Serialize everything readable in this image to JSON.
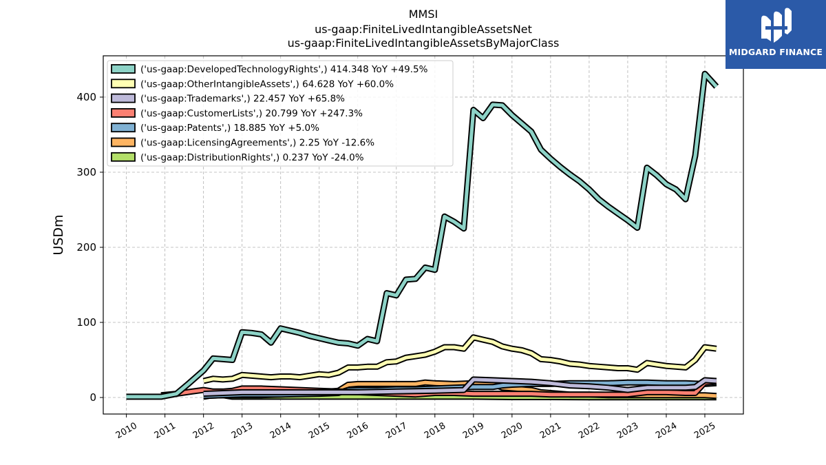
{
  "logo": {
    "text": "MIDGARD FINANCE"
  },
  "chart_data": {
    "type": "line",
    "title": [
      "MMSI",
      "us-gaap:FiniteLivedIntangibleAssetsNet",
      "us-gaap:FiniteLivedIntangibleAssetsByMajorClass"
    ],
    "ylabel": "USDm",
    "xlabel": "",
    "xlim": [
      2009.4,
      2026.0
    ],
    "ylim": [
      -22,
      455
    ],
    "xticks": [
      2010,
      2011,
      2012,
      2013,
      2014,
      2015,
      2016,
      2017,
      2018,
      2019,
      2020,
      2021,
      2022,
      2023,
      2024,
      2025
    ],
    "yticks": [
      0,
      100,
      200,
      300,
      400
    ],
    "grid": true,
    "legend_position": "top-left",
    "series": [
      {
        "name": "('us-gaap:DevelopedTechnologyRights',) 414.348 YoY +49.5%",
        "color": "#8dd3c7",
        "points": [
          [
            2010.0,
            1
          ],
          [
            2010.9,
            1
          ],
          [
            2011.3,
            5
          ],
          [
            2011.6,
            18
          ],
          [
            2012.0,
            36
          ],
          [
            2012.25,
            52
          ],
          [
            2012.5,
            51
          ],
          [
            2012.75,
            50
          ],
          [
            2013.0,
            87
          ],
          [
            2013.25,
            86
          ],
          [
            2013.5,
            84
          ],
          [
            2013.75,
            73
          ],
          [
            2014.0,
            92
          ],
          [
            2014.25,
            89
          ],
          [
            2014.5,
            86
          ],
          [
            2014.75,
            82
          ],
          [
            2015.0,
            79
          ],
          [
            2015.25,
            76
          ],
          [
            2015.5,
            73
          ],
          [
            2015.75,
            72
          ],
          [
            2016.0,
            69
          ],
          [
            2016.25,
            78
          ],
          [
            2016.5,
            75
          ],
          [
            2016.75,
            139
          ],
          [
            2017.0,
            136
          ],
          [
            2017.25,
            157
          ],
          [
            2017.5,
            158
          ],
          [
            2017.75,
            173
          ],
          [
            2018.0,
            170
          ],
          [
            2018.25,
            241
          ],
          [
            2018.5,
            234
          ],
          [
            2018.75,
            225
          ],
          [
            2019.0,
            383
          ],
          [
            2019.25,
            372
          ],
          [
            2019.5,
            390
          ],
          [
            2019.75,
            389
          ],
          [
            2020.0,
            376
          ],
          [
            2020.25,
            365
          ],
          [
            2020.5,
            354
          ],
          [
            2020.75,
            330
          ],
          [
            2021.0,
            318
          ],
          [
            2021.25,
            307
          ],
          [
            2021.5,
            297
          ],
          [
            2021.75,
            288
          ],
          [
            2022.0,
            277
          ],
          [
            2022.25,
            264
          ],
          [
            2022.5,
            254
          ],
          [
            2022.75,
            245
          ],
          [
            2023.0,
            236
          ],
          [
            2023.25,
            226
          ],
          [
            2023.5,
            306
          ],
          [
            2023.75,
            296
          ],
          [
            2024.0,
            284
          ],
          [
            2024.25,
            277
          ],
          [
            2024.5,
            264
          ],
          [
            2024.75,
            322
          ],
          [
            2025.0,
            431
          ],
          [
            2025.3,
            414
          ]
        ]
      },
      {
        "name": "('us-gaap:OtherIntangibleAssets',) 64.628 YoY +60.0%",
        "color": "#ffffb3",
        "points": [
          [
            2012.0,
            22
          ],
          [
            2012.25,
            25
          ],
          [
            2012.5,
            24
          ],
          [
            2012.75,
            25
          ],
          [
            2013.0,
            30
          ],
          [
            2013.25,
            29
          ],
          [
            2013.5,
            28
          ],
          [
            2013.75,
            27
          ],
          [
            2014.0,
            28
          ],
          [
            2014.25,
            28
          ],
          [
            2014.5,
            27
          ],
          [
            2014.75,
            29
          ],
          [
            2015.0,
            31
          ],
          [
            2015.25,
            30
          ],
          [
            2015.5,
            33
          ],
          [
            2015.75,
            40
          ],
          [
            2016.0,
            40
          ],
          [
            2016.25,
            41
          ],
          [
            2016.5,
            41
          ],
          [
            2016.75,
            47
          ],
          [
            2017.0,
            48
          ],
          [
            2017.25,
            53
          ],
          [
            2017.5,
            55
          ],
          [
            2017.75,
            57
          ],
          [
            2018.0,
            61
          ],
          [
            2018.25,
            67
          ],
          [
            2018.5,
            67
          ],
          [
            2018.75,
            65
          ],
          [
            2019.0,
            80
          ],
          [
            2019.25,
            77
          ],
          [
            2019.5,
            74
          ],
          [
            2019.75,
            68
          ],
          [
            2020.0,
            65
          ],
          [
            2020.25,
            63
          ],
          [
            2020.5,
            59
          ],
          [
            2020.75,
            51
          ],
          [
            2021.0,
            50
          ],
          [
            2021.25,
            48
          ],
          [
            2021.5,
            45
          ],
          [
            2021.75,
            44
          ],
          [
            2022.0,
            42
          ],
          [
            2022.25,
            41
          ],
          [
            2022.5,
            40
          ],
          [
            2022.75,
            39
          ],
          [
            2023.0,
            39
          ],
          [
            2023.25,
            37
          ],
          [
            2023.5,
            46
          ],
          [
            2023.75,
            44
          ],
          [
            2024.0,
            42
          ],
          [
            2024.25,
            41
          ],
          [
            2024.5,
            40
          ],
          [
            2024.75,
            50
          ],
          [
            2025.0,
            67
          ],
          [
            2025.3,
            65
          ]
        ]
      },
      {
        "name": "('us-gaap:Trademarks',) 22.457 YoY +65.8%",
        "color": "#bebada",
        "points": [
          [
            2012.0,
            5
          ],
          [
            2012.5,
            6
          ],
          [
            2013.0,
            7
          ],
          [
            2014.0,
            7
          ],
          [
            2015.0,
            7
          ],
          [
            2016.0,
            7
          ],
          [
            2017.0,
            8
          ],
          [
            2018.0,
            9
          ],
          [
            2018.75,
            10
          ],
          [
            2019.0,
            24
          ],
          [
            2019.5,
            23
          ],
          [
            2020.0,
            22
          ],
          [
            2020.5,
            21
          ],
          [
            2021.0,
            19
          ],
          [
            2021.5,
            16
          ],
          [
            2022.0,
            15
          ],
          [
            2022.5,
            13
          ],
          [
            2023.0,
            10
          ],
          [
            2023.5,
            13
          ],
          [
            2024.0,
            13
          ],
          [
            2024.5,
            13
          ],
          [
            2024.75,
            14
          ],
          [
            2025.0,
            23
          ],
          [
            2025.3,
            22
          ]
        ]
      },
      {
        "name": "('us-gaap:CustomerLists',) 20.799 YoY +247.3%",
        "color": "#fb8072",
        "points": [
          [
            2010.9,
            3
          ],
          [
            2011.3,
            5
          ],
          [
            2011.7,
            8
          ],
          [
            2012.0,
            10
          ],
          [
            2012.25,
            8
          ],
          [
            2012.5,
            8
          ],
          [
            2012.75,
            9
          ],
          [
            2013.0,
            12
          ],
          [
            2013.5,
            12
          ],
          [
            2014.0,
            11
          ],
          [
            2014.5,
            10
          ],
          [
            2015.0,
            9
          ],
          [
            2015.5,
            8
          ],
          [
            2016.0,
            7
          ],
          [
            2016.5,
            6
          ],
          [
            2017.0,
            5
          ],
          [
            2017.5,
            4
          ],
          [
            2018.0,
            6
          ],
          [
            2018.5,
            6
          ],
          [
            2019.0,
            5
          ],
          [
            2019.5,
            5
          ],
          [
            2020.0,
            5
          ],
          [
            2020.5,
            5
          ],
          [
            2021.0,
            4
          ],
          [
            2021.5,
            4
          ],
          [
            2022.0,
            4
          ],
          [
            2022.5,
            4
          ],
          [
            2023.0,
            4
          ],
          [
            2023.5,
            7
          ],
          [
            2024.0,
            7
          ],
          [
            2024.5,
            6
          ],
          [
            2024.75,
            6
          ],
          [
            2025.0,
            20
          ],
          [
            2025.3,
            21
          ]
        ]
      },
      {
        "name": "('us-gaap:Patents',) 18.885 YoY +5.0%",
        "color": "#80b1d3",
        "points": [
          [
            2012.0,
            2
          ],
          [
            2012.5,
            3
          ],
          [
            2013.0,
            4
          ],
          [
            2014.0,
            4
          ],
          [
            2015.0,
            5
          ],
          [
            2015.5,
            6
          ],
          [
            2015.75,
            10
          ],
          [
            2016.0,
            10
          ],
          [
            2016.5,
            10
          ],
          [
            2017.0,
            11
          ],
          [
            2017.5,
            11
          ],
          [
            2018.0,
            12
          ],
          [
            2018.5,
            13
          ],
          [
            2019.0,
            14
          ],
          [
            2019.5,
            14
          ],
          [
            2019.75,
            16
          ],
          [
            2020.0,
            17
          ],
          [
            2020.5,
            18
          ],
          [
            2021.0,
            18
          ],
          [
            2021.5,
            19
          ],
          [
            2022.0,
            19
          ],
          [
            2022.5,
            19
          ],
          [
            2023.0,
            20
          ],
          [
            2023.5,
            20
          ],
          [
            2024.0,
            19
          ],
          [
            2024.5,
            19
          ],
          [
            2025.0,
            18
          ],
          [
            2025.3,
            19
          ]
        ]
      },
      {
        "name": "('us-gaap:LicensingAgreements',) 2.25 YoY -12.6%",
        "color": "#fdb462",
        "points": [
          [
            2012.0,
            2
          ],
          [
            2012.5,
            3
          ],
          [
            2013.0,
            3
          ],
          [
            2013.5,
            3
          ],
          [
            2014.0,
            4
          ],
          [
            2014.5,
            5
          ],
          [
            2015.0,
            7
          ],
          [
            2015.5,
            9
          ],
          [
            2015.75,
            17
          ],
          [
            2016.0,
            18
          ],
          [
            2016.5,
            18
          ],
          [
            2017.0,
            18
          ],
          [
            2017.5,
            18
          ],
          [
            2017.75,
            20
          ],
          [
            2018.0,
            19
          ],
          [
            2018.5,
            18
          ],
          [
            2019.0,
            19
          ],
          [
            2019.5,
            18
          ],
          [
            2019.75,
            13
          ],
          [
            2020.0,
            12
          ],
          [
            2020.5,
            10
          ],
          [
            2020.75,
            7
          ],
          [
            2021.0,
            6
          ],
          [
            2021.5,
            4
          ],
          [
            2022.0,
            4
          ],
          [
            2022.5,
            3
          ],
          [
            2023.0,
            3
          ],
          [
            2023.5,
            3
          ],
          [
            2024.0,
            3
          ],
          [
            2024.5,
            3
          ],
          [
            2025.0,
            3
          ],
          [
            2025.3,
            2
          ]
        ]
      },
      {
        "name": "('us-gaap:DistributionRights',) 0.237 YoY -24.0%",
        "color": "#b3de69",
        "points": [
          [
            2012.0,
            1
          ],
          [
            2012.25,
            3
          ],
          [
            2012.5,
            3
          ],
          [
            2012.75,
            1
          ],
          [
            2013.0,
            1
          ],
          [
            2014.0,
            1
          ],
          [
            2015.0,
            1
          ],
          [
            2016.0,
            1
          ],
          [
            2017.0,
            1
          ],
          [
            2018.0,
            1
          ],
          [
            2019.0,
            1
          ],
          [
            2020.0,
            0.5
          ],
          [
            2021.0,
            0.5
          ],
          [
            2022.0,
            0.3
          ],
          [
            2023.0,
            0.3
          ],
          [
            2024.0,
            0.3
          ],
          [
            2025.0,
            0.3
          ],
          [
            2025.3,
            0.24
          ]
        ]
      }
    ]
  }
}
